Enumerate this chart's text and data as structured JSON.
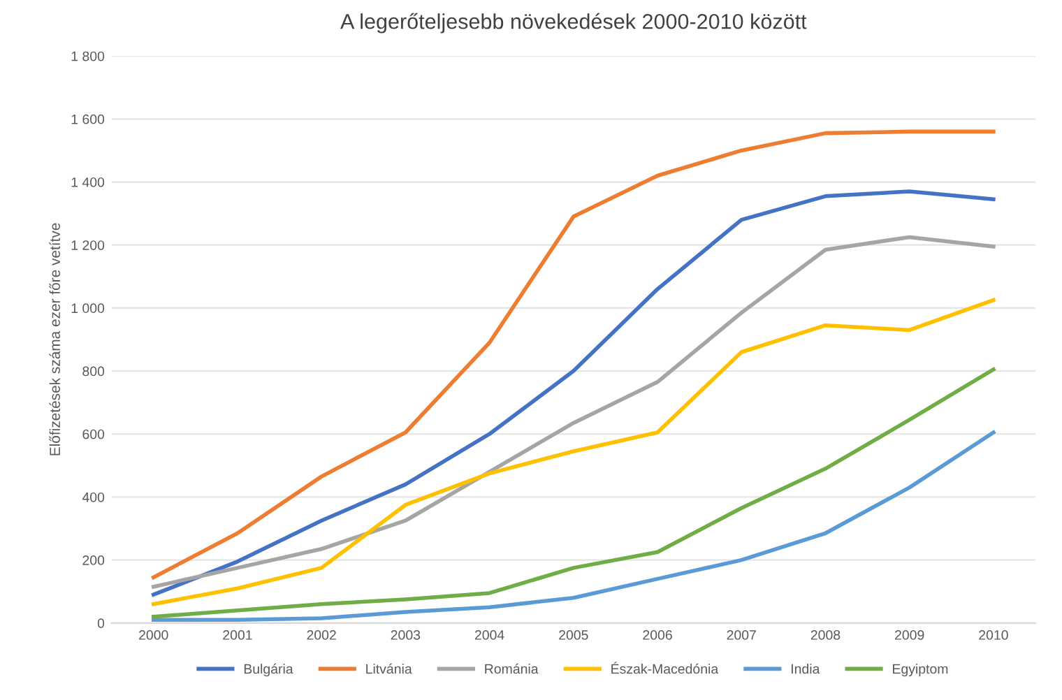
{
  "chart_data": {
    "type": "line",
    "title": "A legerőteljesebb növekedések 2000-2010 között",
    "ylabel": "Előfizetések száma ezer főre vetítve",
    "categories": [
      "2000",
      "2001",
      "2002",
      "2003",
      "2004",
      "2005",
      "2006",
      "2007",
      "2008",
      "2009",
      "2010"
    ],
    "series": [
      {
        "name": "Bulgária",
        "color": "#4472c4",
        "values": [
          90,
          195,
          325,
          440,
          600,
          800,
          1060,
          1280,
          1355,
          1370,
          1345
        ]
      },
      {
        "name": "Litvánia",
        "color": "#ed7d31",
        "values": [
          145,
          285,
          465,
          605,
          890,
          1290,
          1420,
          1500,
          1555,
          1560,
          1560
        ]
      },
      {
        "name": "Románia",
        "color": "#a5a5a5",
        "values": [
          115,
          175,
          235,
          325,
          480,
          635,
          765,
          985,
          1185,
          1225,
          1195
        ]
      },
      {
        "name": "Észak-Macedónia",
        "color": "#ffc000",
        "values": [
          60,
          110,
          175,
          375,
          475,
          545,
          605,
          860,
          945,
          930,
          1025
        ]
      },
      {
        "name": "India",
        "color": "#5b9bd5",
        "values": [
          10,
          10,
          15,
          35,
          50,
          80,
          140,
          200,
          285,
          430,
          605
        ]
      },
      {
        "name": "Egyiptom",
        "color": "#70ad47",
        "values": [
          20,
          40,
          60,
          75,
          95,
          175,
          225,
          365,
          490,
          645,
          805
        ]
      }
    ],
    "ylim": [
      0,
      1800
    ],
    "yticks": [
      {
        "value": 0,
        "label": "0"
      },
      {
        "value": 200,
        "label": "200"
      },
      {
        "value": 400,
        "label": "400"
      },
      {
        "value": 600,
        "label": "600"
      },
      {
        "value": 800,
        "label": "800"
      },
      {
        "value": 1000,
        "label": "1 000"
      },
      {
        "value": 1200,
        "label": "1 200"
      },
      {
        "value": 1400,
        "label": "1 400"
      },
      {
        "value": 1600,
        "label": "1 600"
      },
      {
        "value": 1800,
        "label": "1 800"
      }
    ],
    "grid": "y",
    "legend": "bottom",
    "marker": "none",
    "line_style": "solid"
  }
}
